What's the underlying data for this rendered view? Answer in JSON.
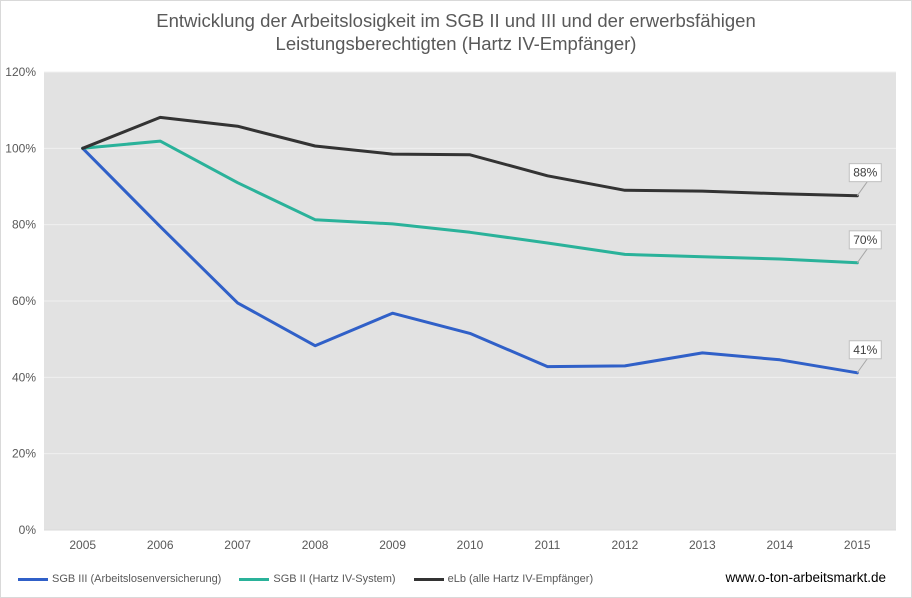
{
  "chart_data": {
    "type": "line",
    "title_lines": [
      "Entwicklung der Arbeitslosigkeit im SGB II und III und der erwerbsfähigen",
      "Leistungsberechtigten (Hartz IV-Empfänger)"
    ],
    "x": [
      "2005",
      "2006",
      "2007",
      "2008",
      "2009",
      "2010",
      "2011",
      "2012",
      "2013",
      "2014",
      "2015"
    ],
    "y_ticks": [
      "0%",
      "20%",
      "40%",
      "60%",
      "80%",
      "100%",
      "120%"
    ],
    "ylim": [
      0,
      120
    ],
    "grid": true,
    "legend_position": "bottom-left",
    "series": [
      {
        "name": "SGB III (Arbeitslosenversicherung)",
        "color": "#3060c8",
        "values": [
          100,
          79.5,
          59.5,
          48.3,
          56.8,
          51.5,
          42.8,
          43.0,
          46.4,
          44.6,
          41.2
        ],
        "end_label": "41%"
      },
      {
        "name": "SGB II (Hartz IV-System)",
        "color": "#2ab29a",
        "values": [
          100,
          101.9,
          91.0,
          81.3,
          80.2,
          78.0,
          75.2,
          72.2,
          71.6,
          71.0,
          70.0
        ],
        "end_label": "70%"
      },
      {
        "name": "eLb (alle Hartz IV-Empfänger)",
        "color": "#333333",
        "values": [
          100,
          108.1,
          105.8,
          100.6,
          98.5,
          98.3,
          92.8,
          89.0,
          88.8,
          88.1,
          87.6
        ],
        "end_label": "88%"
      }
    ],
    "plot_background": "#e2e2e2",
    "gridline_color": "#f0f0f0"
  },
  "footer": {
    "website": "www.o-ton-arbeitsmarkt.de"
  }
}
